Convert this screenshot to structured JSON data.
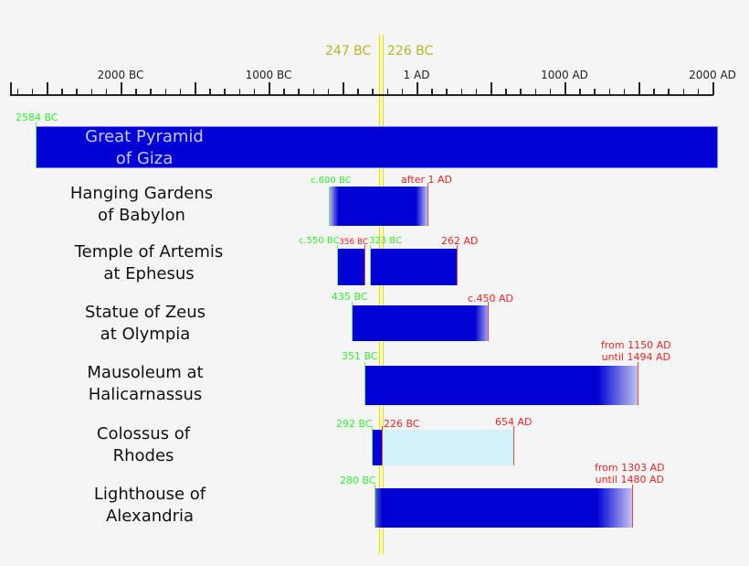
{
  "chart_data": {
    "type": "timeline",
    "title": "",
    "xlabel": "",
    "ylabel": "",
    "axis": {
      "ticks": [
        "2000 BC",
        "1000 BC",
        "1 AD",
        "1000 AD",
        "2000 AD"
      ],
      "range": [
        "c.2750 BC",
        "2000 AD"
      ],
      "minor_tick_interval_years": 100,
      "major_tick_interval_years": 500
    },
    "highlight": {
      "start_label": "247 BC",
      "end_label": "226 BC",
      "color": "#ffff99"
    },
    "colors": {
      "bar": "#0000d4",
      "destroyed": "#d4f2fc",
      "start_marker": "#33ee33",
      "end_marker": "#ee2222"
    },
    "series": [
      {
        "name": "Great Pyramid of Giza",
        "line1": "Great Pyramid",
        "line2": "of Giza",
        "start": -2584,
        "end": 2000,
        "start_label": "2584 BC",
        "end_label": ""
      },
      {
        "name": "Hanging Gardens of Babylon",
        "line1": "Hanging Gardens",
        "line2": "of Babylon",
        "start": -600,
        "end": 1,
        "start_label": "c.600 BC",
        "end_label": "after 1 AD",
        "fade_start": true,
        "fade_end": true
      },
      {
        "name": "Temple of Artemis at Ephesus",
        "line1": "Temple of Artemis",
        "line2": "at Ephesus",
        "segments": [
          {
            "start": -550,
            "end": -356,
            "start_label": "c.550 BC",
            "end_label": "356 BC"
          },
          {
            "start": -323,
            "end": 262,
            "start_label": "323 BC",
            "end_label": "262 AD"
          }
        ]
      },
      {
        "name": "Statue of Zeus at Olympia",
        "line1": "Statue of Zeus",
        "line2": "at Olympia",
        "start": -435,
        "end": 450,
        "start_label": "435 BC",
        "end_label": "c.450 AD",
        "fade_end": true
      },
      {
        "name": "Mausoleum at Halicarnassus",
        "line1": "Mausoleum at",
        "line2": "Halicarnassus",
        "start": -351,
        "end": 1494,
        "start_label": "351 BC",
        "end_label_1": "from 1150 AD",
        "end_label_2": "until 1494 AD",
        "fade_end": true
      },
      {
        "name": "Colossus of Rhodes",
        "line1": "Colossus of",
        "line2": "Rhodes",
        "start": -292,
        "end": -226,
        "ruin_end": 654,
        "start_label": "292 BC",
        "end_label": "226 BC",
        "ruin_label": "654 AD"
      },
      {
        "name": "Lighthouse of Alexandria",
        "line1": "Lighthouse of",
        "line2": "Alexandria",
        "start": -280,
        "end": 1480,
        "start_label": "280 BC",
        "end_label_1": "from 1303 AD",
        "end_label_2": "until 1480 AD",
        "fade_end": true
      }
    ]
  }
}
